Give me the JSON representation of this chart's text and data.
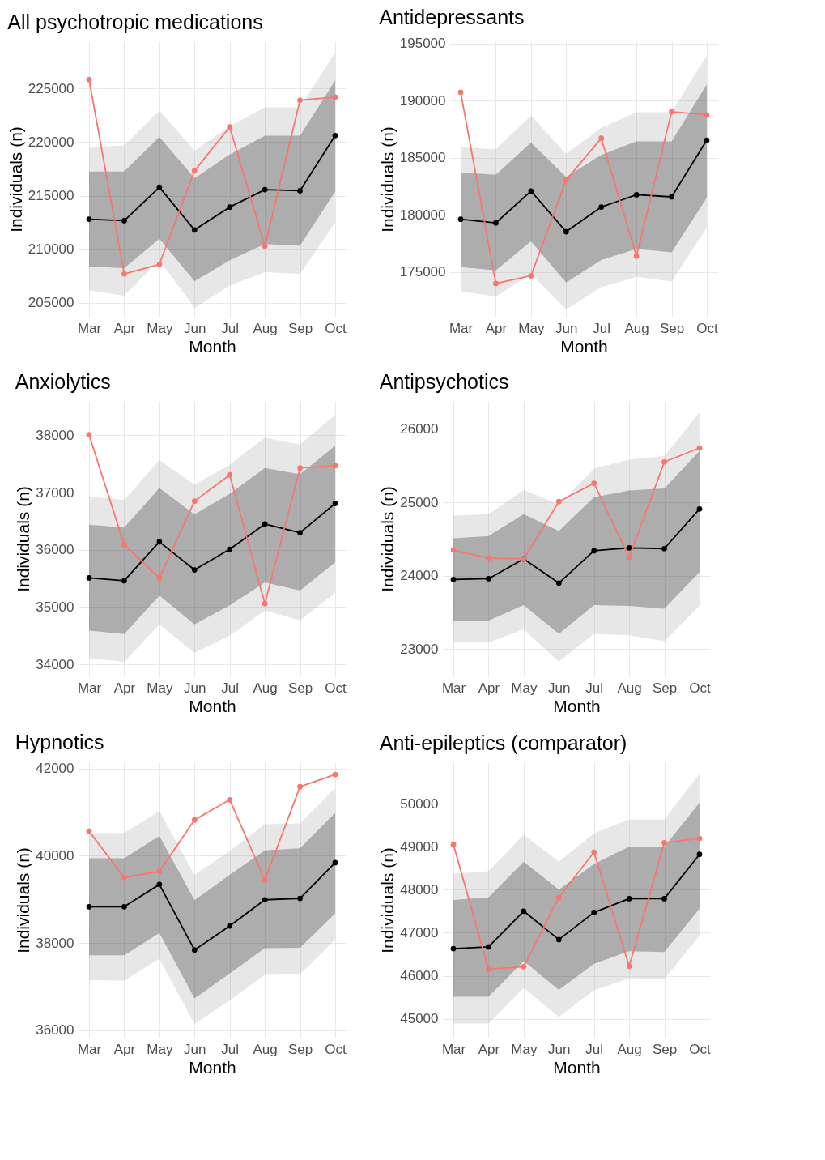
{
  "chart_data": [
    {
      "type": "line",
      "title": "All psychotropic medications",
      "xlabel": "Month",
      "ylabel": "Individuals (n)",
      "categories": [
        "Mar",
        "Apr",
        "May",
        "Jun",
        "Jul",
        "Aug",
        "Sep",
        "Oct"
      ],
      "ylim": [
        203700,
        229400
      ],
      "yticks": [
        205000,
        210000,
        215000,
        220000,
        225000
      ],
      "grid": true,
      "marker": "circle",
      "line_style": "solid",
      "series": [
        {
          "color": "#a0a0a0",
          "values": [
            null,
            null,
            null,
            null,
            null,
            null,
            null,
            null
          ],
          "lower": [
            206170,
            205660,
            209000,
            204510,
            206590,
            207880,
            207680,
            212490
          ],
          "upper": [
            219510,
            219680,
            222930,
            219200,
            221460,
            223240,
            223240,
            228370
          ]
        },
        {
          "color": "#000000",
          "values": [
            212800,
            212660,
            215780,
            211800,
            213930,
            215560,
            215460,
            220610
          ],
          "lower": [
            208390,
            208240,
            210980,
            207020,
            208980,
            210490,
            210340,
            215370
          ],
          "upper": [
            217240,
            217240,
            220490,
            216630,
            218830,
            220590,
            220590,
            225730
          ]
        },
        {
          "color": "#f8766d",
          "values": [
            225830,
            207700,
            208590,
            217320,
            221410,
            210290,
            223900,
            224200
          ]
        }
      ]
    },
    {
      "type": "line",
      "title": "Antidepressants",
      "xlabel": "Month",
      "ylabel": "Individuals (n)",
      "categories": [
        "Mar",
        "Apr",
        "May",
        "Jun",
        "Jul",
        "Aug",
        "Sep",
        "Oct"
      ],
      "ylim": [
        171100,
        195200
      ],
      "yticks": [
        175000,
        180000,
        185000,
        190000,
        195000
      ],
      "grid": true,
      "marker": "circle",
      "line_style": "solid",
      "series": [
        {
          "color": "#a0a0a0",
          "values": [
            null,
            null,
            null,
            null,
            null,
            null,
            null,
            null
          ],
          "lower": [
            173320,
            172870,
            174860,
            171730,
            173680,
            174590,
            174180,
            178900
          ],
          "upper": [
            185930,
            185750,
            188700,
            185340,
            187630,
            188990,
            188990,
            193980
          ]
        },
        {
          "color": "#000000",
          "values": [
            179630,
            179310,
            182100,
            178540,
            180700,
            181770,
            181590,
            186550
          ],
          "lower": [
            175450,
            175150,
            177700,
            174090,
            176060,
            177030,
            176740,
            181510
          ],
          "upper": [
            183710,
            183530,
            186340,
            183320,
            185250,
            186450,
            186450,
            191420
          ]
        },
        {
          "color": "#f8766d",
          "values": [
            190740,
            174010,
            174680,
            183050,
            186720,
            176400,
            189040,
            188760
          ]
        }
      ]
    },
    {
      "type": "line",
      "title": "Anxiolytics",
      "xlabel": "Month",
      "ylabel": "Individuals (n)",
      "categories": [
        "Mar",
        "Apr",
        "May",
        "Jun",
        "Jul",
        "Aug",
        "Sep",
        "Oct"
      ],
      "ylim": [
        33790,
        38600
      ],
      "yticks": [
        34000,
        35000,
        36000,
        37000,
        38000
      ],
      "grid": true,
      "marker": "circle",
      "line_style": "solid",
      "series": [
        {
          "color": "#a0a0a0",
          "values": [
            null,
            null,
            null,
            null,
            null,
            null,
            null,
            null
          ],
          "lower": [
            34110,
            34040,
            34700,
            34200,
            34500,
            34940,
            34770,
            35250
          ],
          "upper": [
            36930,
            36870,
            37570,
            37140,
            37490,
            37960,
            37840,
            38360
          ]
        },
        {
          "color": "#000000",
          "values": [
            35510,
            35460,
            36140,
            35650,
            36010,
            36450,
            36300,
            36810
          ],
          "lower": [
            34590,
            34530,
            35200,
            34700,
            35030,
            35430,
            35290,
            35780
          ],
          "upper": [
            36440,
            36390,
            37080,
            36620,
            36980,
            37430,
            37320,
            37820
          ]
        },
        {
          "color": "#f8766d",
          "values": [
            38010,
            36090,
            35510,
            36850,
            37310,
            35060,
            37430,
            37470
          ]
        }
      ]
    },
    {
      "type": "line",
      "title": "Antipsychotics",
      "xlabel": "Month",
      "ylabel": "Individuals (n)",
      "categories": [
        "Mar",
        "Apr",
        "May",
        "Jun",
        "Jul",
        "Aug",
        "Sep",
        "Oct"
      ],
      "ylim": [
        22630,
        26380
      ],
      "yticks": [
        23000,
        24000,
        25000,
        26000
      ],
      "grid": true,
      "marker": "circle",
      "line_style": "solid",
      "series": [
        {
          "color": "#a0a0a0",
          "values": [
            null,
            null,
            null,
            null,
            null,
            null,
            null,
            null
          ],
          "lower": [
            23090,
            23090,
            23270,
            22830,
            23210,
            23190,
            23110,
            23590
          ],
          "upper": [
            24820,
            24840,
            25170,
            24970,
            25460,
            25580,
            25630,
            26220
          ]
        },
        {
          "color": "#000000",
          "values": [
            23950,
            23960,
            24230,
            23900,
            24340,
            24380,
            24370,
            24910
          ],
          "lower": [
            23390,
            23390,
            23600,
            23210,
            23600,
            23590,
            23550,
            24050
          ],
          "upper": [
            24510,
            24540,
            24840,
            24610,
            25070,
            25160,
            25190,
            25700
          ]
        },
        {
          "color": "#f8766d",
          "values": [
            24350,
            24240,
            24230,
            25010,
            25260,
            24250,
            25550,
            25740
          ]
        }
      ]
    },
    {
      "type": "line",
      "title": "Hypnotics",
      "xlabel": "Month",
      "ylabel": "Individuals (n)",
      "categories": [
        "Mar",
        "Apr",
        "May",
        "Jun",
        "Jul",
        "Aug",
        "Sep",
        "Oct"
      ],
      "ylim": [
        35830,
        42140
      ],
      "yticks": [
        36000,
        38000,
        40000,
        42000
      ],
      "grid": true,
      "marker": "circle",
      "line_style": "solid",
      "series": [
        {
          "color": "#a0a0a0",
          "values": [
            null,
            null,
            null,
            null,
            null,
            null,
            null,
            null
          ],
          "lower": [
            37150,
            37140,
            37640,
            36140,
            36690,
            37270,
            37280,
            38080
          ],
          "upper": [
            40510,
            40520,
            41020,
            39560,
            40110,
            40720,
            40740,
            41550
          ]
        },
        {
          "color": "#000000",
          "values": [
            38830,
            38830,
            39340,
            37840,
            38390,
            38990,
            39020,
            39840
          ],
          "lower": [
            37720,
            37720,
            38230,
            36730,
            37300,
            37880,
            37890,
            38680
          ],
          "upper": [
            39940,
            39940,
            40450,
            38980,
            39560,
            40120,
            40170,
            40980
          ]
        },
        {
          "color": "#f8766d",
          "values": [
            40560,
            39500,
            39640,
            40820,
            41280,
            39440,
            41580,
            41860
          ]
        }
      ]
    },
    {
      "type": "line",
      "title": "Anti-epileptics (comparator)",
      "xlabel": "Month",
      "ylabel": "Individuals (n)",
      "categories": [
        "Mar",
        "Apr",
        "May",
        "Jun",
        "Jul",
        "Aug",
        "Sep",
        "Oct"
      ],
      "ylim": [
        44560,
        50960
      ],
      "yticks": [
        45000,
        46000,
        47000,
        48000,
        49000,
        50000
      ],
      "grid": true,
      "marker": "circle",
      "line_style": "solid",
      "series": [
        {
          "color": "#a0a0a0",
          "values": [
            null,
            null,
            null,
            null,
            null,
            null,
            null,
            null
          ],
          "lower": [
            44890,
            44890,
            45720,
            45040,
            45660,
            45940,
            45920,
            46930
          ],
          "upper": [
            48370,
            48430,
            49280,
            48650,
            49310,
            49630,
            49630,
            50690
          ]
        },
        {
          "color": "#000000",
          "values": [
            46630,
            46670,
            47500,
            46840,
            47470,
            47790,
            47790,
            48820
          ],
          "lower": [
            45510,
            45510,
            46340,
            45670,
            46280,
            46570,
            46550,
            47560
          ],
          "upper": [
            47760,
            47820,
            48650,
            48000,
            48600,
            49000,
            49000,
            50020
          ]
        },
        {
          "color": "#f8766d",
          "values": [
            49050,
            46150,
            46210,
            47820,
            48870,
            46220,
            49090,
            49190
          ]
        }
      ]
    }
  ]
}
